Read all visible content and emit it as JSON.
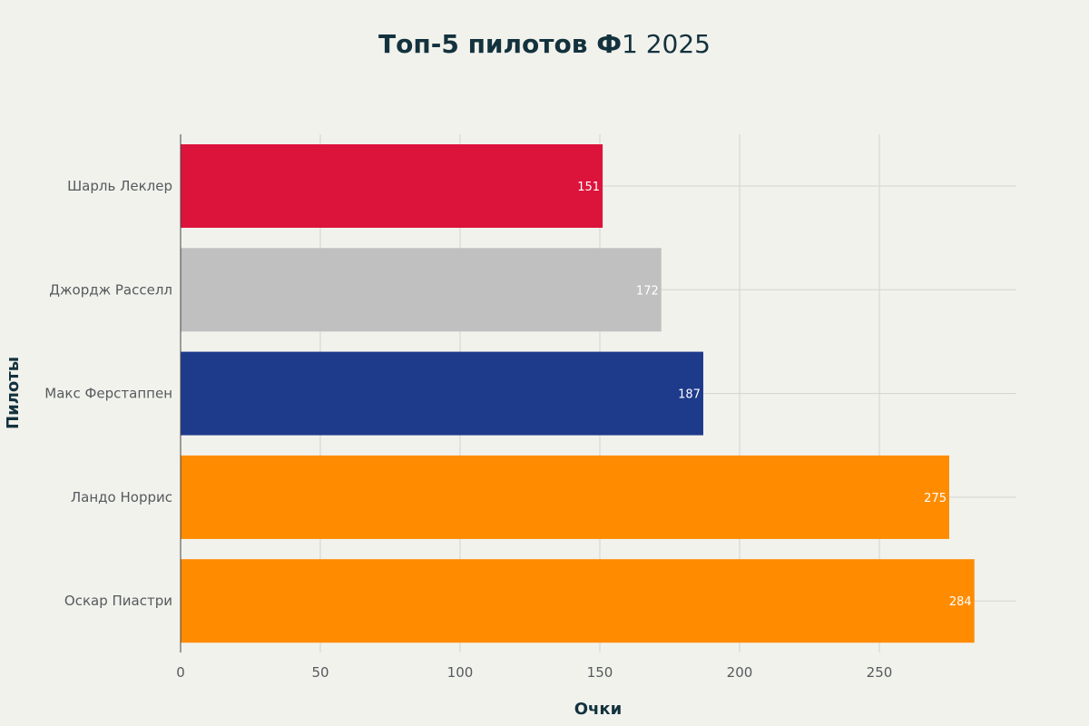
{
  "chart_data": {
    "type": "bar",
    "orientation": "horizontal",
    "title_bold": "Топ-5 пилотов Ф",
    "title_regular": "1 2025",
    "xlabel": "Очки",
    "ylabel": "Пилоты",
    "xlim": [
      0,
      300
    ],
    "xticks": [
      0,
      50,
      100,
      150,
      200,
      250
    ],
    "grid": true,
    "categories": [
      "Шарль Леклер",
      "Джордж Расселл",
      "Макс Ферстаппен",
      "Ландо Норрис",
      "Оскар Пиастри"
    ],
    "values": [
      151,
      172,
      187,
      275,
      284
    ],
    "colors": [
      "#dc143c",
      "#c0c0c0",
      "#1e3a8a",
      "#ff8c00",
      "#ff8c00"
    ],
    "data_label_color": "#ffffff"
  }
}
